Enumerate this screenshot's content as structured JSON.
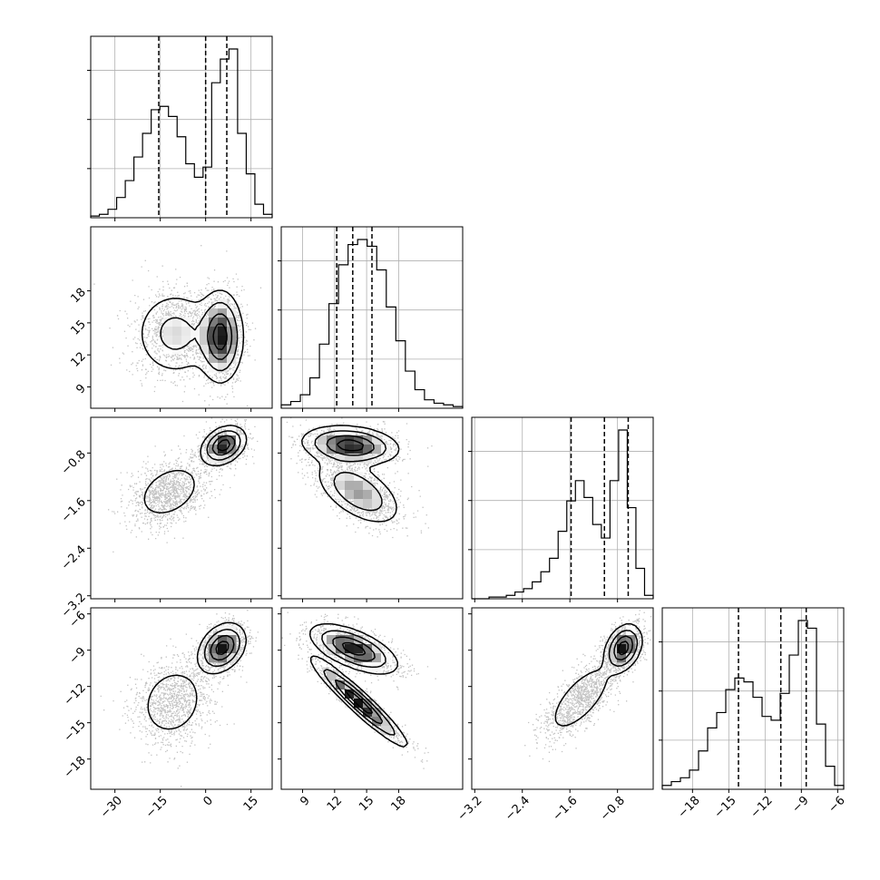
{
  "chart_data": {
    "type": "corner",
    "grid": true,
    "parameters": [
      {
        "range": [
          -38,
          22
        ],
        "ticks": [
          -30,
          -15,
          0,
          15
        ],
        "tick_labels": [
          "−30",
          "−15",
          "0",
          "15"
        ],
        "quantiles": [
          -15.5,
          0,
          7
        ],
        "hist": [
          0.01,
          0.02,
          0.05,
          0.12,
          0.22,
          0.36,
          0.5,
          0.64,
          0.66,
          0.6,
          0.48,
          0.32,
          0.24,
          0.3,
          0.8,
          0.94,
          1.0,
          0.5,
          0.26,
          0.08,
          0.02
        ],
        "modes": [
          {
            "mu": -10,
            "sd": 8,
            "w": 0.45
          },
          {
            "mu": 5,
            "sd": 3.8,
            "w": 0.55
          }
        ]
      },
      {
        "range": [
          7,
          24
        ],
        "ticks": [
          9,
          12,
          15,
          18
        ],
        "tick_labels": [
          "9",
          "12",
          "15",
          "18"
        ],
        "quantiles": [
          12.2,
          13.7,
          15.5
        ],
        "hist": [
          0.02,
          0.04,
          0.08,
          0.18,
          0.38,
          0.62,
          0.85,
          0.97,
          1.0,
          0.96,
          0.82,
          0.6,
          0.4,
          0.22,
          0.11,
          0.05,
          0.03,
          0.02,
          0.01
        ],
        "modes": [
          {
            "mu": 13.7,
            "sd": 2.2,
            "w": 1.0
          }
        ]
      },
      {
        "range": [
          -3.25,
          -0.2
        ],
        "ticks": [
          -3.2,
          -2.4,
          -1.6,
          -0.8
        ],
        "tick_labels": [
          "−3.2",
          "−2.4",
          "−1.6",
          "−0.8"
        ],
        "quantiles": [
          -1.58,
          -1.02,
          -0.62
        ],
        "hist": [
          0.0,
          0.0,
          0.01,
          0.01,
          0.02,
          0.04,
          0.06,
          0.1,
          0.16,
          0.24,
          0.4,
          0.58,
          0.7,
          0.6,
          0.44,
          0.36,
          0.7,
          1.0,
          0.54,
          0.18,
          0.02
        ],
        "modes": [
          {
            "mu": -1.4,
            "sd": 0.38,
            "w": 0.45
          },
          {
            "mu": -0.7,
            "sd": 0.15,
            "w": 0.55
          }
        ]
      },
      {
        "range": [
          -20.5,
          -5.5
        ],
        "ticks": [
          -18,
          -15,
          -12,
          -9,
          -6
        ],
        "tick_labels": [
          "−18",
          "−15",
          "−12",
          "−9",
          "−6"
        ],
        "quantiles": [
          -14.2,
          -10.7,
          -8.6
        ],
        "hist": [
          0.02,
          0.04,
          0.06,
          0.1,
          0.2,
          0.32,
          0.4,
          0.52,
          0.58,
          0.56,
          0.48,
          0.38,
          0.36,
          0.5,
          0.7,
          0.88,
          0.84,
          0.34,
          0.12,
          0.02
        ],
        "modes": [
          {
            "mu": -13.2,
            "sd": 1.8,
            "w": 0.45
          },
          {
            "mu": -8.7,
            "sd": 1.0,
            "w": 0.55
          }
        ]
      }
    ],
    "hist_yticks": [
      0.3,
      0.6,
      0.9
    ],
    "pairs": [
      {
        "col": 0,
        "row": 1,
        "modes": [
          {
            "mx": -10,
            "my": 14,
            "sx": 7,
            "sy": 2.1,
            "rho": 0.0,
            "w": 0.45
          },
          {
            "mx": 5,
            "my": 13.7,
            "sx": 3.6,
            "sy": 2.1,
            "rho": 0.0,
            "w": 0.55
          }
        ]
      },
      {
        "col": 0,
        "row": 2,
        "modes": [
          {
            "mx": -12,
            "my": -1.45,
            "sx": 6.5,
            "sy": 0.28,
            "rho": 0.35,
            "w": 0.45
          },
          {
            "mx": 6,
            "my": -0.67,
            "sx": 3.6,
            "sy": 0.16,
            "rho": 0.3,
            "w": 0.55
          }
        ]
      },
      {
        "col": 1,
        "row": 2,
        "modes": [
          {
            "mx": 14.2,
            "my": -1.45,
            "sx": 2.0,
            "sy": 0.28,
            "rho": -0.55,
            "w": 0.45
          },
          {
            "mx": 13.5,
            "my": -0.67,
            "sx": 2.2,
            "sy": 0.16,
            "rho": -0.2,
            "w": 0.55
          }
        ]
      },
      {
        "col": 0,
        "row": 3,
        "modes": [
          {
            "mx": -11,
            "my": -13.3,
            "sx": 6.5,
            "sy": 1.8,
            "rho": 0.15,
            "w": 0.45
          },
          {
            "mx": 5.5,
            "my": -8.8,
            "sx": 3.8,
            "sy": 1.0,
            "rho": 0.3,
            "w": 0.55
          }
        ]
      },
      {
        "col": 1,
        "row": 3,
        "modes": [
          {
            "mx": 14.3,
            "my": -13.3,
            "sx": 2.2,
            "sy": 1.8,
            "rho": -0.95,
            "w": 0.45
          },
          {
            "mx": 13.8,
            "my": -8.9,
            "sx": 2.0,
            "sy": 1.0,
            "rho": -0.62,
            "w": 0.55
          }
        ]
      },
      {
        "col": 2,
        "row": 3,
        "modes": [
          {
            "mx": -1.42,
            "my": -13.0,
            "sx": 0.32,
            "sy": 1.7,
            "rho": 0.7,
            "w": 0.45
          },
          {
            "mx": -0.7,
            "my": -8.8,
            "sx": 0.15,
            "sy": 0.95,
            "rho": 0.3,
            "w": 0.55
          }
        ]
      }
    ]
  }
}
